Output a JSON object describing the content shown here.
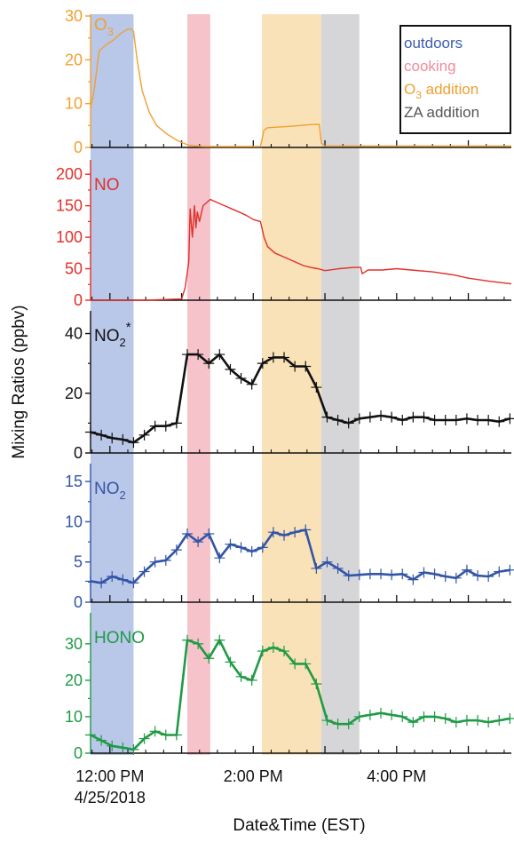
{
  "chart_data": {
    "type": "line",
    "ylabel": "Mixing Ratios (ppbv)",
    "xlabel": "Date&Time (EST)",
    "x_tick_labels": [
      {
        "t": 12.0,
        "line1": "12:00 PM",
        "line2": "4/25/2018"
      },
      {
        "t": 14.0,
        "line1": "2:00 PM",
        "line2": ""
      },
      {
        "t": 16.0,
        "line1": "4:00 PM",
        "line2": ""
      }
    ],
    "xlim": [
      11.73,
      17.6
    ],
    "periods": [
      {
        "name": "outdoors",
        "label": "outdoors",
        "start": 11.73,
        "end": 12.33,
        "color": "#b9c7e8",
        "text_color": "#3b5fb0"
      },
      {
        "name": "cooking",
        "label": "cooking",
        "start": 13.08,
        "end": 13.4,
        "color": "#f6c3cb",
        "text_color": "#f08c9c"
      },
      {
        "name": "o3-addition",
        "label": "O3 addition",
        "start": 14.12,
        "end": 14.95,
        "color": "#fae2b8",
        "text_color": "#f0a030"
      },
      {
        "name": "za-addition",
        "label": "ZA addition",
        "start": 14.95,
        "end": 15.48,
        "color": "#d6d6d8",
        "text_color": "#555555"
      }
    ],
    "panels": [
      {
        "name": "o3-panel",
        "label": "O3",
        "color": "#f0a030",
        "ylim": [
          0,
          30
        ],
        "yticks": [
          0,
          10,
          20,
          30
        ],
        "markers": false,
        "x": [
          11.73,
          11.78,
          11.85,
          11.95,
          12.05,
          12.15,
          12.25,
          12.3,
          12.33,
          12.38,
          12.45,
          12.55,
          12.65,
          12.8,
          12.95,
          13.1,
          13.3,
          13.6,
          14.1,
          14.15,
          14.2,
          14.5,
          14.8,
          14.92,
          14.95,
          15.0,
          15.5,
          16.0,
          16.5,
          17.0,
          17.5,
          17.6
        ],
        "y": [
          9,
          13,
          22,
          23.5,
          24.5,
          26,
          27,
          27,
          26.5,
          20,
          13,
          8,
          5,
          3,
          1.5,
          0.5,
          0.2,
          0.2,
          0.2,
          4,
          4.5,
          4.8,
          5.2,
          5.3,
          1,
          0.3,
          0.3,
          0.3,
          0.3,
          0.3,
          0.3,
          0.3
        ]
      },
      {
        "name": "no-panel",
        "label": "NO",
        "color": "#e0302a",
        "ylim": [
          0,
          220
        ],
        "yticks": [
          0,
          50,
          100,
          150,
          200
        ],
        "markers": false,
        "x": [
          11.73,
          12.0,
          12.5,
          13.0,
          13.05,
          13.1,
          13.12,
          13.15,
          13.18,
          13.2,
          13.22,
          13.25,
          13.3,
          13.4,
          13.5,
          13.6,
          13.7,
          13.8,
          13.9,
          14.0,
          14.1,
          14.15,
          14.2,
          14.3,
          14.4,
          14.5,
          14.6,
          14.7,
          14.8,
          14.9,
          15.0,
          15.2,
          15.4,
          15.5,
          15.52,
          15.6,
          15.8,
          16.0,
          16.2,
          16.5,
          16.8,
          17.0,
          17.3,
          17.6
        ],
        "y": [
          0,
          0,
          0,
          2,
          20,
          60,
          145,
          100,
          150,
          115,
          140,
          125,
          150,
          160,
          155,
          150,
          145,
          140,
          135,
          128,
          125,
          100,
          85,
          75,
          70,
          65,
          60,
          55,
          52,
          50,
          47,
          50,
          52,
          52,
          42,
          48,
          48,
          50,
          48,
          45,
          40,
          35,
          30,
          26
        ]
      },
      {
        "name": "no2-star-panel",
        "label": "NO2*",
        "color": "#111111",
        "ylim": [
          0,
          47
        ],
        "yticks": [
          0,
          20,
          40
        ],
        "markers": true,
        "x": [
          11.73,
          11.88,
          12.03,
          12.18,
          12.33,
          12.48,
          12.63,
          12.78,
          12.93,
          13.08,
          13.23,
          13.38,
          13.53,
          13.68,
          13.83,
          13.98,
          14.13,
          14.28,
          14.43,
          14.58,
          14.73,
          14.88,
          15.03,
          15.18,
          15.33,
          15.48,
          15.63,
          15.78,
          15.93,
          16.08,
          16.23,
          16.38,
          16.53,
          16.68,
          16.83,
          16.98,
          17.13,
          17.28,
          17.43,
          17.58
        ],
        "y": [
          7,
          6,
          5,
          4.5,
          3.5,
          6,
          9,
          9,
          10,
          33,
          33,
          30,
          33,
          28,
          25,
          23,
          30,
          32,
          32,
          29,
          29,
          22,
          12,
          11,
          10,
          11.5,
          12,
          12.5,
          12,
          11,
          12,
          12,
          11,
          11,
          11,
          11.5,
          11,
          11,
          10.5,
          11.5
        ]
      },
      {
        "name": "no2-panel",
        "label": "NO2",
        "color": "#3355a6",
        "ylim": [
          0,
          17
        ],
        "yticks": [
          0,
          5,
          10,
          15
        ],
        "markers": true,
        "x": [
          11.73,
          11.88,
          12.03,
          12.18,
          12.33,
          12.48,
          12.63,
          12.78,
          12.93,
          13.08,
          13.23,
          13.38,
          13.53,
          13.68,
          13.83,
          13.98,
          14.13,
          14.28,
          14.43,
          14.58,
          14.73,
          14.88,
          15.03,
          15.18,
          15.33,
          15.48,
          15.63,
          15.78,
          15.93,
          16.08,
          16.23,
          16.38,
          16.53,
          16.68,
          16.83,
          16.98,
          17.13,
          17.28,
          17.43,
          17.58
        ],
        "y": [
          2.6,
          2.4,
          3.2,
          2.8,
          2.4,
          3.8,
          5,
          5.2,
          6.5,
          8.5,
          7.5,
          8.5,
          5.5,
          7.2,
          6.8,
          6.3,
          6.8,
          8.7,
          8.3,
          8.7,
          9,
          4.2,
          5,
          4.2,
          3.3,
          3.4,
          3.5,
          3.5,
          3.4,
          3.5,
          2.8,
          3.7,
          3.5,
          3.2,
          3.0,
          4.0,
          3.3,
          3.2,
          3.8,
          4.0
        ]
      },
      {
        "name": "hono-panel",
        "label": "HONO",
        "color": "#1f9a45",
        "ylim": [
          0,
          38
        ],
        "yticks": [
          0,
          10,
          20,
          30
        ],
        "markers": true,
        "x": [
          11.73,
          11.88,
          12.03,
          12.18,
          12.33,
          12.48,
          12.63,
          12.78,
          12.93,
          13.08,
          13.23,
          13.38,
          13.53,
          13.68,
          13.83,
          13.98,
          14.13,
          14.28,
          14.43,
          14.58,
          14.73,
          14.88,
          15.03,
          15.18,
          15.33,
          15.48,
          15.63,
          15.78,
          15.93,
          16.08,
          16.23,
          16.38,
          16.53,
          16.68,
          16.83,
          16.98,
          17.13,
          17.28,
          17.43,
          17.58
        ],
        "y": [
          5,
          3.5,
          2,
          1.5,
          1,
          4,
          6,
          5,
          5,
          31,
          30,
          26,
          31,
          25,
          21,
          20,
          28,
          29,
          28,
          24.5,
          24.5,
          19,
          9,
          8,
          8,
          10,
          10.5,
          11,
          10.5,
          10,
          8.5,
          10,
          10,
          9.5,
          8.5,
          9,
          9,
          8.5,
          9,
          9.5
        ]
      }
    ]
  }
}
